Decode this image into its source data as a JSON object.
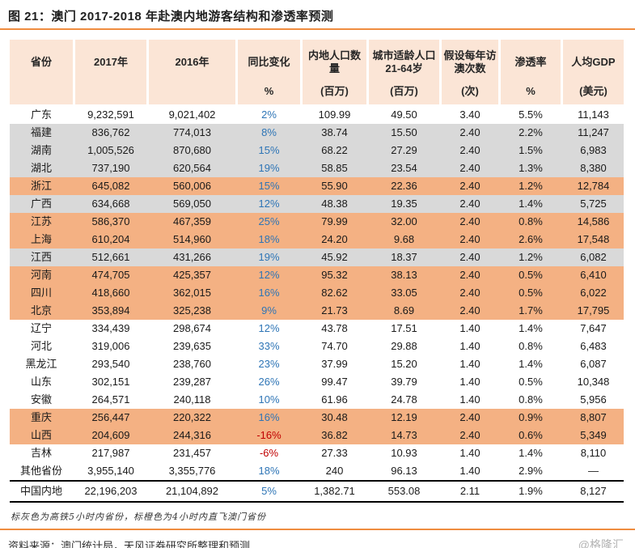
{
  "title": "图 21：澳门 2017-2018 年赴澳内地游客结构和渗透率预测",
  "table": {
    "headers": [
      {
        "label": "省份",
        "unit": ""
      },
      {
        "label": "2017年",
        "unit": ""
      },
      {
        "label": "2016年",
        "unit": ""
      },
      {
        "label": "同比变化",
        "unit": "%"
      },
      {
        "label": "内地人口数量",
        "unit": "(百万)"
      },
      {
        "label": "城市适龄人口 21-64岁",
        "unit": "(百万)"
      },
      {
        "label": "假设每年访澳次数",
        "unit": "(次)"
      },
      {
        "label": "渗透率",
        "unit": "%"
      },
      {
        "label": "人均GDP",
        "unit": "(美元)"
      }
    ],
    "rows": [
      {
        "province": "广东",
        "y2017": "9,232,591",
        "y2016": "9,021,402",
        "yoy": "2%",
        "pop": "109.99",
        "urban": "49.50",
        "visits": "3.40",
        "penetration": "5.5%",
        "gdp": "11,143",
        "highlight": "none"
      },
      {
        "province": "福建",
        "y2017": "836,762",
        "y2016": "774,013",
        "yoy": "8%",
        "pop": "38.74",
        "urban": "15.50",
        "visits": "2.40",
        "penetration": "2.2%",
        "gdp": "11,247",
        "highlight": "gray"
      },
      {
        "province": "湖南",
        "y2017": "1,005,526",
        "y2016": "870,680",
        "yoy": "15%",
        "pop": "68.22",
        "urban": "27.29",
        "visits": "2.40",
        "penetration": "1.5%",
        "gdp": "6,983",
        "highlight": "gray"
      },
      {
        "province": "湖北",
        "y2017": "737,190",
        "y2016": "620,564",
        "yoy": "19%",
        "pop": "58.85",
        "urban": "23.54",
        "visits": "2.40",
        "penetration": "1.3%",
        "gdp": "8,380",
        "highlight": "gray"
      },
      {
        "province": "浙江",
        "y2017": "645,082",
        "y2016": "560,006",
        "yoy": "15%",
        "pop": "55.90",
        "urban": "22.36",
        "visits": "2.40",
        "penetration": "1.2%",
        "gdp": "12,784",
        "highlight": "orange"
      },
      {
        "province": "广西",
        "y2017": "634,668",
        "y2016": "569,050",
        "yoy": "12%",
        "pop": "48.38",
        "urban": "19.35",
        "visits": "2.40",
        "penetration": "1.4%",
        "gdp": "5,725",
        "highlight": "gray"
      },
      {
        "province": "江苏",
        "y2017": "586,370",
        "y2016": "467,359",
        "yoy": "25%",
        "pop": "79.99",
        "urban": "32.00",
        "visits": "2.40",
        "penetration": "0.8%",
        "gdp": "14,586",
        "highlight": "orange"
      },
      {
        "province": "上海",
        "y2017": "610,204",
        "y2016": "514,960",
        "yoy": "18%",
        "pop": "24.20",
        "urban": "9.68",
        "visits": "2.40",
        "penetration": "2.6%",
        "gdp": "17,548",
        "highlight": "orange"
      },
      {
        "province": "江西",
        "y2017": "512,661",
        "y2016": "431,266",
        "yoy": "19%",
        "pop": "45.92",
        "urban": "18.37",
        "visits": "2.40",
        "penetration": "1.2%",
        "gdp": "6,082",
        "highlight": "gray"
      },
      {
        "province": "河南",
        "y2017": "474,705",
        "y2016": "425,357",
        "yoy": "12%",
        "pop": "95.32",
        "urban": "38.13",
        "visits": "2.40",
        "penetration": "0.5%",
        "gdp": "6,410",
        "highlight": "orange"
      },
      {
        "province": "四川",
        "y2017": "418,660",
        "y2016": "362,015",
        "yoy": "16%",
        "pop": "82.62",
        "urban": "33.05",
        "visits": "2.40",
        "penetration": "0.5%",
        "gdp": "6,022",
        "highlight": "orange"
      },
      {
        "province": "北京",
        "y2017": "353,894",
        "y2016": "325,238",
        "yoy": "9%",
        "pop": "21.73",
        "urban": "8.69",
        "visits": "2.40",
        "penetration": "1.7%",
        "gdp": "17,795",
        "highlight": "orange"
      },
      {
        "province": "辽宁",
        "y2017": "334,439",
        "y2016": "298,674",
        "yoy": "12%",
        "pop": "43.78",
        "urban": "17.51",
        "visits": "1.40",
        "penetration": "1.4%",
        "gdp": "7,647",
        "highlight": "none"
      },
      {
        "province": "河北",
        "y2017": "319,006",
        "y2016": "239,635",
        "yoy": "33%",
        "pop": "74.70",
        "urban": "29.88",
        "visits": "1.40",
        "penetration": "0.8%",
        "gdp": "6,483",
        "highlight": "none"
      },
      {
        "province": "黑龙江",
        "y2017": "293,540",
        "y2016": "238,760",
        "yoy": "23%",
        "pop": "37.99",
        "urban": "15.20",
        "visits": "1.40",
        "penetration": "1.4%",
        "gdp": "6,087",
        "highlight": "none"
      },
      {
        "province": "山东",
        "y2017": "302,151",
        "y2016": "239,287",
        "yoy": "26%",
        "pop": "99.47",
        "urban": "39.79",
        "visits": "1.40",
        "penetration": "0.5%",
        "gdp": "10,348",
        "highlight": "none"
      },
      {
        "province": "安徽",
        "y2017": "264,571",
        "y2016": "240,118",
        "yoy": "10%",
        "pop": "61.96",
        "urban": "24.78",
        "visits": "1.40",
        "penetration": "0.8%",
        "gdp": "5,956",
        "highlight": "none"
      },
      {
        "province": "重庆",
        "y2017": "256,447",
        "y2016": "220,322",
        "yoy": "16%",
        "pop": "30.48",
        "urban": "12.19",
        "visits": "2.40",
        "penetration": "0.9%",
        "gdp": "8,807",
        "highlight": "orange"
      },
      {
        "province": "山西",
        "y2017": "204,609",
        "y2016": "244,316",
        "yoy": "-16%",
        "pop": "36.82",
        "urban": "14.73",
        "visits": "2.40",
        "penetration": "0.6%",
        "gdp": "5,349",
        "highlight": "orange"
      },
      {
        "province": "吉林",
        "y2017": "217,987",
        "y2016": "231,457",
        "yoy": "-6%",
        "pop": "27.33",
        "urban": "10.93",
        "visits": "1.40",
        "penetration": "1.4%",
        "gdp": "8,110",
        "highlight": "none"
      },
      {
        "province": "其他省份",
        "y2017": "3,955,140",
        "y2016": "3,355,776",
        "yoy": "18%",
        "pop": "240",
        "urban": "96.13",
        "visits": "1.40",
        "penetration": "2.9%",
        "gdp": "—",
        "highlight": "none"
      },
      {
        "province": "中国内地",
        "y2017": "22,196,203",
        "y2016": "21,104,892",
        "yoy": "5%",
        "pop": "1,382.71",
        "urban": "553.08",
        "visits": "2.11",
        "penetration": "1.9%",
        "gdp": "8,127",
        "highlight": "none",
        "total": true
      }
    ]
  },
  "footnote": "标灰色为高铁5小时内省份，标橙色为4小时内直飞澳门省份",
  "source": "资料来源：澳门统计局，天风证券研究所整理和预测",
  "watermark": "@格隆汇",
  "colors": {
    "header_bg": "#fbe5d6",
    "gray_row": "#d9d9d9",
    "orange_row": "#f4b183",
    "positive_blue": "#2e75b6",
    "negative_red": "#c00000",
    "rule_orange": "#ef8c3f"
  }
}
